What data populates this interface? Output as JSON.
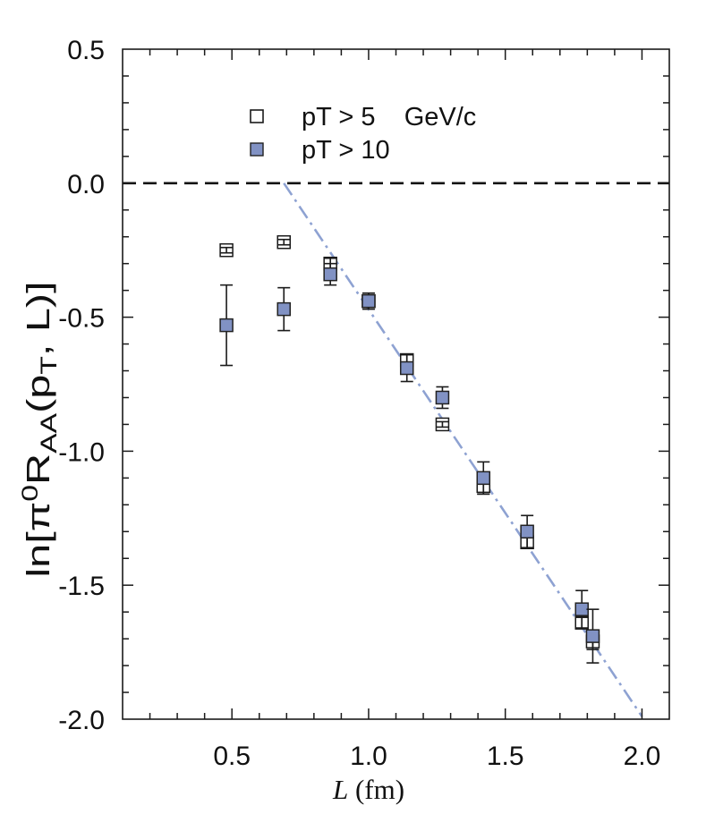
{
  "chart_data": {
    "type": "scatter",
    "xlabel_parts": [
      "L",
      " (fm)"
    ],
    "ylabel_parts": [
      "ln[π",
      "0",
      "R",
      "AA",
      "(p",
      "T",
      ", L)]"
    ],
    "xlim": [
      0.1,
      2.1
    ],
    "ylim": [
      -2.0,
      0.5
    ],
    "xticks": [
      0.5,
      1.0,
      1.5,
      2.0
    ],
    "xtick_labels": [
      "0.5",
      "1.0",
      "1.5",
      "2.0"
    ],
    "yticks": [
      0.5,
      0.0,
      -0.5,
      -1.0,
      -1.5,
      -2.0
    ],
    "ytick_labels": [
      "0.5",
      "0.0",
      "-0.5",
      "-1.0",
      "-1.5",
      "-2.0"
    ],
    "minor_tick_step": 0.1,
    "grid": false,
    "legend_position": "top-center",
    "series": [
      {
        "name": "pT > 5    GeV/c",
        "x": [
          0.48,
          0.69,
          0.86,
          1.0,
          1.14,
          1.27,
          1.42,
          1.58,
          1.78,
          1.82
        ],
        "y": [
          -0.25,
          -0.22,
          -0.3,
          -0.44,
          -0.66,
          -0.9,
          -1.13,
          -1.34,
          -1.64,
          -1.71
        ],
        "yerr": [
          0.01,
          0.01,
          0.02,
          0.02,
          0.02,
          0.01,
          0.03,
          0.02,
          0.02,
          0.03
        ]
      },
      {
        "name": "pT > 10",
        "x": [
          0.48,
          0.69,
          0.86,
          1.0,
          1.14,
          1.27,
          1.42,
          1.58,
          1.78,
          1.82
        ],
        "y": [
          -0.53,
          -0.47,
          -0.34,
          -0.44,
          -0.69,
          -0.8,
          -1.1,
          -1.3,
          -1.59,
          -1.69
        ],
        "yerr": [
          0.15,
          0.08,
          0.04,
          0.03,
          0.05,
          0.04,
          0.06,
          0.06,
          0.07,
          0.1
        ]
      }
    ],
    "reference_line": {
      "y": 0.0
    },
    "fit_line": {
      "x": [
        0.69,
        2.0
      ],
      "y": [
        0.0,
        -1.99
      ]
    }
  },
  "colors": {
    "open_marker_fill": "#ffffff",
    "filled_marker": "#8192c4",
    "fit_line": "#8ea2d2",
    "ink": "#1a1a1a"
  }
}
